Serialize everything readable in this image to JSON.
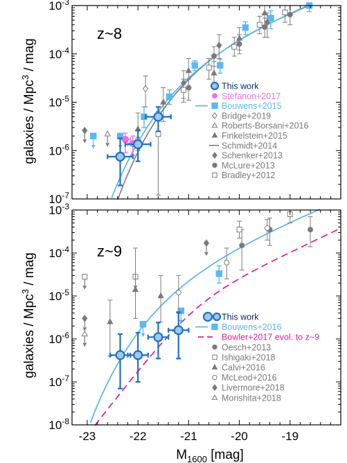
{
  "colors": {
    "this_work": "#1f6fc5",
    "this_work_fill": "#9fc8ee",
    "bouwens": "#5cb8f0",
    "stefanon": "#f06ee0",
    "bowler": "#e0219a",
    "grey": "#7a7a7a",
    "axis": "#000000"
  },
  "chart_data": [
    {
      "type": "scatter",
      "label": "z~8",
      "xlabel": "M1600 [mag]",
      "ylabel": "galaxies / Mpc3 / mag",
      "xlim": [
        -23.3,
        -18.0
      ],
      "ylim_log10": [
        -7,
        -3
      ],
      "x_ticks": [
        "-23",
        "-22",
        "-21",
        "-20",
        "-19"
      ],
      "y_ticks": [
        "10-7",
        "10-6",
        "10-5",
        "10-4",
        "10-3"
      ],
      "legend_position": "lower-right",
      "legend": [
        "This work",
        "Stefanon+2017",
        "Bouwens+2015",
        "Bridge+2019",
        "Roberts-Borsani+2016",
        "Finkelstein+2015",
        "Schmidt+2014",
        "Schenker+2013",
        "McLure+2013",
        "Bradley+2012"
      ],
      "series": [
        {
          "name": "This work",
          "points": [
            {
              "x": -22.35,
              "y": 7.5e-07,
              "ylo": 1.9e-07,
              "yhi": 1.8e-06,
              "xerr": 0.25
            },
            {
              "x": -22.0,
              "y": 1.35e-06,
              "ylo": 6e-07,
              "yhi": 2.6e-06,
              "xerr": 0.25
            },
            {
              "x": -21.6,
              "y": 5e-06,
              "ylo": 2.5e-06,
              "yhi": 8e-06,
              "xerr": 0.25
            }
          ]
        },
        {
          "name": "Stefanon+2017",
          "points": [
            {
              "x": -22.25,
              "y": 1.7e-06,
              "ylo": 9e-07,
              "yhi": 2.3e-06,
              "xerr": 0.1
            },
            {
              "x": -22.1,
              "y": 1.4e-06,
              "ylo": 8e-07,
              "yhi": 2e-06,
              "xerr": 0.1
            }
          ]
        },
        {
          "name": "Bouwens+2015",
          "points": [
            {
              "x": -22.88,
              "y": 2e-06,
              "upper": true
            },
            {
              "x": -22.35,
              "y": 2e-06,
              "upper": true
            },
            {
              "x": -21.88,
              "y": 5e-06,
              "ylo": 3e-06,
              "yhi": 8e-06
            },
            {
              "x": -21.38,
              "y": 1.3e-05,
              "ylo": 9e-06,
              "yhi": 1.8e-05
            },
            {
              "x": -20.88,
              "y": 5.8e-05,
              "ylo": 4.5e-05,
              "yhi": 7.2e-05
            },
            {
              "x": -20.38,
              "y": 5.8e-05,
              "ylo": 4e-05,
              "yhi": 7.8e-05
            },
            {
              "x": -19.88,
              "y": 0.00035,
              "ylo": 0.00025,
              "yhi": 0.00046
            },
            {
              "x": -19.38,
              "y": 0.00055,
              "ylo": 0.00033,
              "yhi": 0.00078
            },
            {
              "x": -18.62,
              "y": 0.001,
              "ylo": 0.00075,
              "yhi": 0.0013
            }
          ]
        },
        {
          "name": "Bridge+2019",
          "points": [
            {
              "x": -21.85,
              "y": 1.9e-05,
              "ylo": 8e-06,
              "yhi": 3.5e-05
            }
          ]
        },
        {
          "name": "Roberts-Borsani+2016",
          "points": [
            {
              "x": -22.6,
              "y": 2.2e-06,
              "upper": true
            },
            {
              "x": -22.0,
              "y": 1.8e-06,
              "upper": true
            }
          ]
        },
        {
          "name": "Finkelstein+2015",
          "points": [
            {
              "x": -22.0,
              "y": 2.8e-06,
              "ylo": 1e-06,
              "yhi": 6e-06
            },
            {
              "x": -21.5,
              "y": 1e-05,
              "ylo": 4e-06,
              "yhi": 2e-05
            },
            {
              "x": -21.0,
              "y": 4.5e-05,
              "ylo": 2e-05,
              "yhi": 8e-05
            },
            {
              "x": -20.5,
              "y": 4e-05,
              "ylo": 2e-05,
              "yhi": 7e-05
            },
            {
              "x": -20.0,
              "y": 0.00021,
              "ylo": 0.00012,
              "yhi": 0.00035
            },
            {
              "x": -19.5,
              "y": 0.0007,
              "ylo": 0.00038,
              "yhi": 0.001
            }
          ]
        },
        {
          "name": "Schmidt+2014",
          "line": {
            "phi_star": 0.0003,
            "m_star": -20.4,
            "alpha": -1.9
          }
        },
        {
          "name": "Schenker+2013",
          "points": [
            {
              "x": -23.05,
              "y": 2.6e-06,
              "upper": true
            },
            {
              "x": -21.1,
              "y": 2.5e-05,
              "ylo": 1.2e-05,
              "yhi": 4.5e-05
            },
            {
              "x": -20.4,
              "y": 0.00015,
              "ylo": 8e-05,
              "yhi": 0.00025
            },
            {
              "x": -19.45,
              "y": 0.00045,
              "ylo": 0.00022,
              "yhi": 0.0007
            }
          ]
        },
        {
          "name": "McLure+2013",
          "points": [
            {
              "x": -21.0,
              "y": 2e-05,
              "ylo": 1.1e-05,
              "yhi": 3e-05
            },
            {
              "x": -20.5,
              "y": 9e-05,
              "ylo": 5.5e-05,
              "yhi": 0.00014
            },
            {
              "x": -20.0,
              "y": 0.00016,
              "ylo": 0.0001,
              "yhi": 0.00025
            },
            {
              "x": -19.5,
              "y": 0.00036,
              "ylo": 0.00022,
              "yhi": 0.00055
            },
            {
              "x": -19.0,
              "y": 0.00065,
              "ylo": 0.0004,
              "yhi": 0.001
            }
          ]
        },
        {
          "name": "Bradley+2012",
          "points": [
            {
              "x": -21.6,
              "y": 2.2e-06,
              "ylo": 1.2e-07,
              "yhi": 6.5e-06
            },
            {
              "x": -21.1,
              "y": 1.8e-05,
              "ylo": 1e-05,
              "yhi": 3e-05
            },
            {
              "x": -20.6,
              "y": 5.2e-05,
              "ylo": 3e-05,
              "yhi": 8e-05
            },
            {
              "x": -20.1,
              "y": 0.00014,
              "ylo": 9e-05,
              "yhi": 0.00022
            },
            {
              "x": -19.6,
              "y": 0.0004,
              "ylo": 0.00026,
              "yhi": 0.0006
            },
            {
              "x": -19.1,
              "y": 0.00072,
              "ylo": 0.00045,
              "yhi": 0.001
            }
          ]
        },
        {
          "name": "Bouwens+2015 fit",
          "line": {
            "phi_star": 0.0002,
            "m_star": -20.63,
            "alpha": -2.02
          }
        }
      ]
    },
    {
      "type": "scatter",
      "label": "z~9",
      "xlabel": "M1600 [mag]",
      "ylabel": "galaxies / Mpc3 / mag",
      "xlim": [
        -23.3,
        -18.0
      ],
      "ylim_log10": [
        -8,
        -3
      ],
      "x_ticks": [
        "-23",
        "-22",
        "-21",
        "-20",
        "-19"
      ],
      "y_ticks": [
        "10-8",
        "10-7",
        "10-6",
        "10-5",
        "10-4",
        "10-3"
      ],
      "legend_position": "lower-right",
      "legend": [
        "This work",
        "Bouwens+2016",
        "Bowler+2017 evol. to z~9",
        "Oesch+2013",
        "Ishigaki+2018",
        "Calvi+2016",
        "McLeod+2016",
        "Livermore+2018",
        "Morishita+2018"
      ],
      "series": [
        {
          "name": "This work",
          "points": [
            {
              "x": -22.35,
              "y": 4.2e-07,
              "ylo": 7e-08,
              "yhi": 1.3e-06,
              "xerr": 0.2
            },
            {
              "x": -22.0,
              "y": 4.2e-07,
              "ylo": 1e-07,
              "yhi": 1.4e-06,
              "xerr": 0.2
            },
            {
              "x": -21.6,
              "y": 1.1e-06,
              "ylo": 3.5e-07,
              "yhi": 2.4e-06,
              "xerr": 0.2
            },
            {
              "x": -21.2,
              "y": 1.6e-06,
              "ylo": 3.5e-07,
              "yhi": 4.2e-06,
              "xerr": 0.2
            }
          ]
        },
        {
          "name": "Bouwens+2016",
          "points": [
            {
              "x": -21.9,
              "y": 2.2e-06,
              "upper": true
            },
            {
              "x": -21.15,
              "y": 4.5e-06,
              "upper": true
            },
            {
              "x": -20.4,
              "y": 3.3e-05,
              "ylo": 2e-05,
              "yhi": 5e-05
            }
          ]
        },
        {
          "name": "Bouwens+2016 fit",
          "line": {
            "phi_star": 8e-05,
            "m_star": -20.9,
            "alpha": -2.2
          }
        },
        {
          "name": "Bowler+2017 evol. to z~9",
          "line": {
            "phi_star": 9e-06,
            "m_star": -20.9,
            "alpha": -2.4,
            "beta": -4.8
          }
        },
        {
          "name": "Oesch+2013",
          "points": [
            {
              "x": -19.4,
              "y": 0.00035,
              "ylo": 0.00015,
              "yhi": 0.00065
            },
            {
              "x": -18.6,
              "y": 0.00035,
              "ylo": 0.00014,
              "yhi": 0.0007
            },
            {
              "x": -19.95,
              "y": 0.00015,
              "ylo": 4e-05,
              "yhi": 0.00035
            }
          ]
        },
        {
          "name": "Ishigaki+2018",
          "points": [
            {
              "x": -23.05,
              "y": 2.8e-05,
              "upper": true
            },
            {
              "x": -22.05,
              "y": 2.8e-05,
              "upper": true
            },
            {
              "x": -20.0,
              "y": 0.00035,
              "ylo": 0.00022,
              "yhi": 0.00055
            },
            {
              "x": -19.0,
              "y": 0.0008,
              "ylo": 0.0005,
              "yhi": 0.001
            }
          ]
        },
        {
          "name": "Calvi+2016",
          "points": [
            {
              "x": -22.55,
              "y": 2.5e-06,
              "ylo": 4e-07,
              "yhi": 8e-06
            },
            {
              "x": -22.05,
              "y": 1.4e-05,
              "ylo": 3e-06,
              "yhi": 0.00013
            },
            {
              "x": -21.55,
              "y": 1e-05,
              "ylo": 2.5e-06,
              "yhi": 3e-05
            }
          ]
        },
        {
          "name": "McLeod+2016",
          "points": [
            {
              "x": -21.2,
              "y": 1.2e-05,
              "ylo": 4e-06,
              "yhi": 3e-05
            },
            {
              "x": -20.25,
              "y": 6e-05,
              "ylo": 2.5e-05,
              "yhi": 0.00013
            },
            {
              "x": -19.45,
              "y": 0.00038,
              "ylo": 0.0002,
              "yhi": 0.0006
            }
          ]
        },
        {
          "name": "Livermore+2018",
          "points": [
            {
              "x": -23.05,
              "y": 3e-06,
              "upper": true
            },
            {
              "x": -20.65,
              "y": 0.00017,
              "upper": true
            }
          ]
        },
        {
          "name": "Morishita+2018",
          "points": [
            {
              "x": -23.05,
              "y": 1.3e-06,
              "upper": true
            }
          ]
        }
      ]
    }
  ]
}
